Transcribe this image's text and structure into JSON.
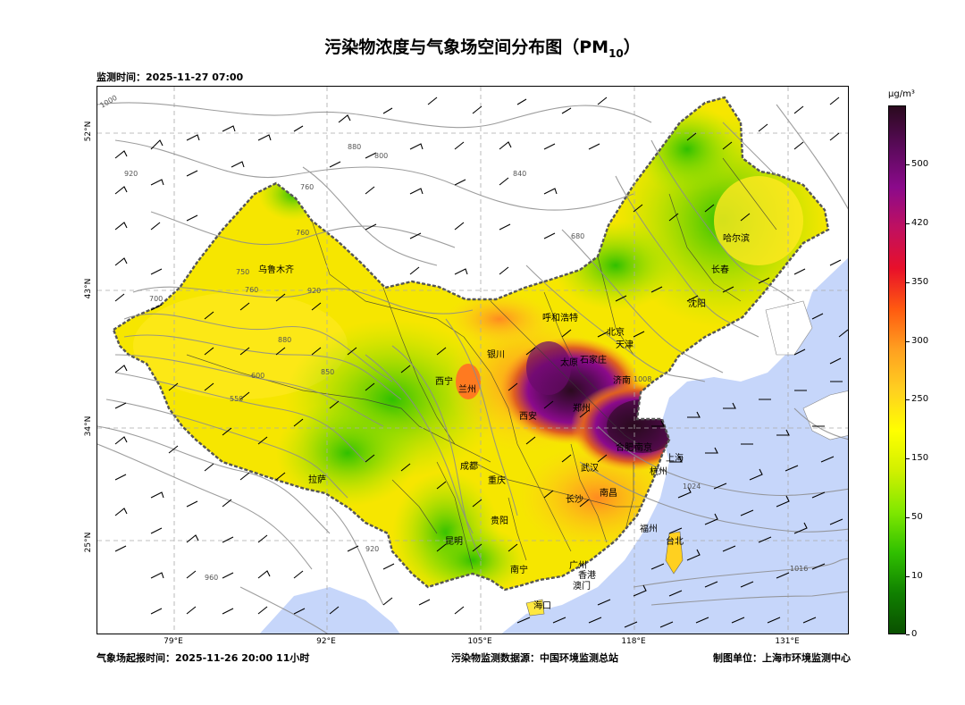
{
  "title_main": "污染物浓度与气象场空间分布图（PM",
  "title_sub": "10",
  "title_end": "）",
  "obs_time": "监测时间：2025-11-27 07:00",
  "footer": {
    "forecast": "气象场起报时间：2025-11-26 20:00 11小时",
    "source": "污染物监测数据源：中国环境监测总站",
    "maker": "制图单位：上海市环境监测中心"
  },
  "lat_labels": [
    "52°N",
    "43°N",
    "34°N",
    "25°N"
  ],
  "lon_labels": [
    "79°E",
    "92°E",
    "105°E",
    "118°E",
    "131°E"
  ],
  "colorbar": {
    "unit": "μg/m³",
    "ticks": [
      "500",
      "420",
      "350",
      "300",
      "250",
      "150",
      "50",
      "10",
      "0"
    ],
    "colors": [
      "#2a0a1e",
      "#5a0a5a",
      "#8b0a8b",
      "#c01060",
      "#e8102a",
      "#ff5a10",
      "#ffa020",
      "#ffd020",
      "#ffff00",
      "#d0f000",
      "#80e800",
      "#30c000",
      "#108000",
      "#0a5000"
    ]
  },
  "cities": [
    "乌鲁木齐",
    "呼和浩特",
    "北京",
    "天津",
    "石家庄",
    "太原",
    "银川",
    "兰州",
    "西宁",
    "西安",
    "郑州",
    "济南",
    "合肥",
    "南京",
    "上海",
    "杭州",
    "武汉",
    "成都",
    "重庆",
    "长沙",
    "南昌",
    "贵阳",
    "昆明",
    "福州",
    "台北",
    "南宁",
    "广州",
    "香港",
    "澳门",
    "海口",
    "拉萨",
    "沈阳",
    "长春",
    "哈尔滨"
  ],
  "isobar_labels": [
    "1000",
    "920",
    "880",
    "800",
    "760",
    "840",
    "920",
    "750",
    "760",
    "700",
    "880",
    "600",
    "550",
    "850",
    "920",
    "1016",
    "1024",
    "1008",
    "960",
    "760",
    "680"
  ]
}
